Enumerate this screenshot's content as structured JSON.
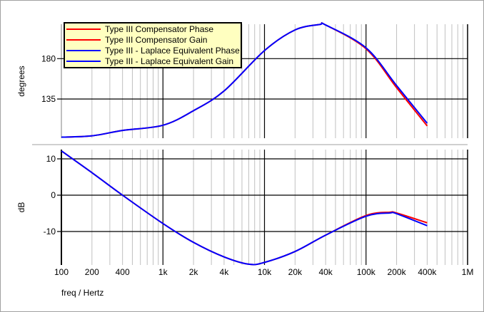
{
  "chart_data": [
    {
      "type": "line",
      "panel": "phase",
      "ylabel": "degrees",
      "xscale": "log",
      "xlim": [
        100,
        1000000
      ],
      "ylim": [
        91,
        221
      ],
      "yticks": [
        135,
        180
      ],
      "ytick_labels": [
        "135",
        "180"
      ],
      "grid": true,
      "legend_position": "top-left",
      "series": [
        {
          "name": "Type III Compensator Phase",
          "color": "#ff0000",
          "x": [
            100,
            200,
            400,
            1000,
            2000,
            4000,
            10000,
            20000,
            35000,
            40000,
            100000,
            200000,
            400000
          ],
          "y": [
            92.5,
            94,
            100,
            105.8,
            122,
            144,
            189,
            212,
            218,
            217.5,
            191,
            147.6,
            105
          ]
        },
        {
          "name": "Type III - Laplace Equivalent Phase",
          "color": "#0000ff",
          "x": [
            100,
            200,
            400,
            1000,
            2000,
            4000,
            10000,
            20000,
            35000,
            40000,
            100000,
            200000,
            400000
          ],
          "y": [
            92.5,
            94,
            100,
            105.8,
            122,
            144,
            189,
            212,
            218,
            217.5,
            192,
            150,
            108
          ]
        }
      ]
    },
    {
      "type": "line",
      "panel": "gain",
      "ylabel": "dB",
      "xlabel": "freq / Hertz",
      "xscale": "log",
      "xlim": [
        100,
        1000000
      ],
      "ylim": [
        -19.2,
        12.5
      ],
      "yticks": [
        10,
        0,
        -10
      ],
      "ytick_labels": [
        "10",
        "0",
        "-10"
      ],
      "xticks": [
        100,
        200,
        400,
        1000,
        2000,
        4000,
        10000,
        20000,
        40000,
        100000,
        200000,
        400000,
        1000000
      ],
      "xtick_labels": [
        "100",
        "200",
        "400",
        "1k",
        "2k",
        "4k",
        "10k",
        "20k",
        "40k",
        "100k",
        "200k",
        "400k",
        "1M"
      ],
      "grid": true,
      "series": [
        {
          "name": "Type III Compensator Gain",
          "color": "#ff0000",
          "x": [
            100,
            200,
            400,
            1000,
            2000,
            4000,
            7000,
            10000,
            20000,
            40000,
            100000,
            170000,
            200000,
            400000
          ],
          "y": [
            12.2,
            6.2,
            0,
            -7.8,
            -13,
            -17,
            -19,
            -18.5,
            -15.5,
            -11,
            -5.6,
            -4.7,
            -4.9,
            -7.6
          ]
        },
        {
          "name": "Type III - Laplace Equivalent Gain",
          "color": "#0000ff",
          "x": [
            100,
            200,
            400,
            1000,
            2000,
            4000,
            7000,
            10000,
            20000,
            40000,
            100000,
            170000,
            200000,
            400000
          ],
          "y": [
            12.2,
            6.2,
            0,
            -7.8,
            -13,
            -17,
            -19,
            -18.5,
            -15.5,
            -11,
            -5.8,
            -4.9,
            -5.1,
            -8.4
          ]
        }
      ]
    }
  ],
  "legend": {
    "items": [
      {
        "label": "Type III Compensator Phase",
        "color": "#ff0000"
      },
      {
        "label": "Type III Compensator Gain",
        "color": "#ff0000"
      },
      {
        "label": "Type III - Laplace Equivalent Phase",
        "color": "#0000ff"
      },
      {
        "label": "Type III - Laplace Equivalent Gain",
        "color": "#0000ff"
      }
    ]
  }
}
